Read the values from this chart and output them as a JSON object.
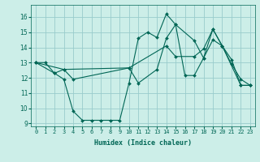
{
  "title": "",
  "xlabel": "Humidex (Indice chaleur)",
  "xlim": [
    -0.5,
    23.5
  ],
  "ylim": [
    8.8,
    16.8
  ],
  "yticks": [
    9,
    10,
    11,
    12,
    13,
    14,
    15,
    16
  ],
  "xticks": [
    0,
    1,
    2,
    3,
    4,
    5,
    6,
    7,
    8,
    9,
    10,
    11,
    12,
    13,
    14,
    15,
    16,
    17,
    18,
    19,
    20,
    21,
    22,
    23
  ],
  "bg_color": "#cceee8",
  "grid_color": "#99cccc",
  "line_color": "#006655",
  "lines": [
    {
      "x": [
        0,
        1,
        2,
        3,
        4,
        5,
        6,
        7,
        8,
        9,
        10,
        11,
        12,
        13,
        14,
        15,
        16,
        17,
        18,
        19,
        20,
        21,
        22,
        23
      ],
      "y": [
        13.0,
        13.0,
        12.3,
        11.9,
        9.8,
        9.2,
        9.2,
        9.2,
        9.2,
        9.2,
        11.65,
        14.6,
        15.0,
        14.65,
        16.2,
        15.5,
        12.15,
        12.15,
        13.3,
        14.5,
        14.1,
        12.9,
        11.9,
        11.5
      ]
    },
    {
      "x": [
        0,
        2,
        3,
        10,
        11,
        13,
        14,
        15,
        17,
        18,
        19,
        20,
        21,
        22,
        23
      ],
      "y": [
        13.0,
        12.3,
        12.55,
        12.65,
        11.65,
        12.55,
        14.6,
        15.5,
        14.45,
        13.3,
        15.2,
        14.1,
        13.2,
        11.5,
        11.5
      ]
    },
    {
      "x": [
        0,
        3,
        4,
        10,
        14,
        15,
        17,
        18,
        19,
        20,
        22,
        23
      ],
      "y": [
        13.0,
        12.55,
        11.9,
        12.65,
        14.1,
        13.4,
        13.4,
        13.9,
        15.2,
        14.1,
        11.5,
        11.5
      ]
    }
  ],
  "font_size_x": 5,
  "font_size_y": 5.5,
  "xlabel_size": 6,
  "marker": "D",
  "marker_size": 2,
  "line_width": 0.8
}
